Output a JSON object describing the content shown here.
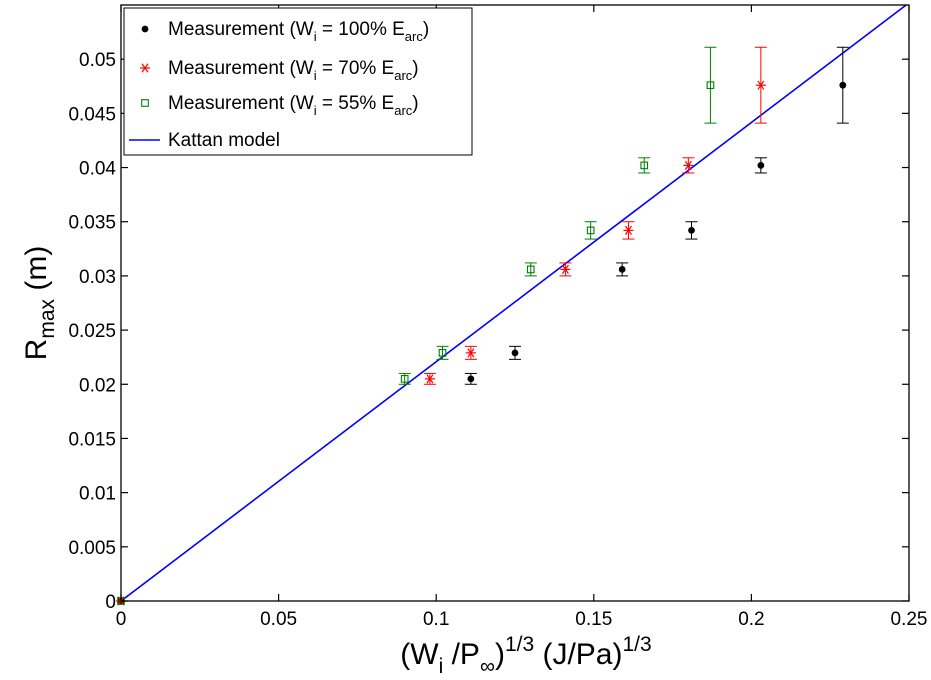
{
  "chart_data": {
    "type": "scatter",
    "title": "",
    "xlabel": {
      "base1": "(W",
      "sub1": "i",
      "mid": " /P",
      "sub2": "∞",
      "close": ")",
      "sup1": "1/3",
      "units": "  (J/Pa)",
      "sup2": "1/3"
    },
    "ylabel": {
      "base": "R",
      "sub": "max",
      "units": " (m)"
    },
    "xlim": [
      0,
      0.25
    ],
    "ylim": [
      0,
      0.055
    ],
    "xticks": [
      "0",
      "0.05",
      "0.1",
      "0.15",
      "0.2",
      "0.25"
    ],
    "xtick_values": [
      0,
      0.05,
      0.1,
      0.15,
      0.2,
      0.25
    ],
    "yticks": [
      "0",
      "0.005",
      "0.01",
      "0.015",
      "0.02",
      "0.025",
      "0.03",
      "0.035",
      "0.04",
      "0.045",
      "0.05"
    ],
    "ytick_values": [
      0,
      0.005,
      0.01,
      0.015,
      0.02,
      0.025,
      0.03,
      0.035,
      0.04,
      0.045,
      0.05
    ],
    "grid": false,
    "legend_position": "top-left",
    "series": [
      {
        "name": "Measurement (W_i = 100% E_arc)",
        "legend": {
          "pre": "Measurement (W",
          "sub": "i",
          "mid": " = 100% E",
          "sub2": "arc",
          "post": ")"
        },
        "marker": "dot",
        "color": "#000000",
        "x": [
          0,
          0.111,
          0.125,
          0.159,
          0.181,
          0.203,
          0.229
        ],
        "y": [
          0,
          0.0205,
          0.0229,
          0.0306,
          0.0342,
          0.0402,
          0.0476
        ],
        "err": [
          0,
          0.0005,
          0.0006,
          0.0006,
          0.0008,
          0.0007,
          0.0035
        ]
      },
      {
        "name": "Measurement (W_i = 70% E_arc)",
        "legend": {
          "pre": "Measurement (W",
          "sub": "i",
          "mid": " = 70% E",
          "sub2": "arc",
          "post": ")"
        },
        "marker": "asterisk",
        "color": "#ff0000",
        "x": [
          0,
          0.098,
          0.111,
          0.141,
          0.161,
          0.18,
          0.203
        ],
        "y": [
          0,
          0.0205,
          0.0229,
          0.0306,
          0.0342,
          0.0402,
          0.0476
        ],
        "err": [
          0,
          0.0005,
          0.0006,
          0.0006,
          0.0008,
          0.0007,
          0.0035
        ]
      },
      {
        "name": "Measurement (W_i = 55% E_arc)",
        "legend": {
          "pre": "Measurement (W",
          "sub": "i",
          "mid": " = 55% E",
          "sub2": "arc",
          "post": ")"
        },
        "marker": "square",
        "color": "#008000",
        "x": [
          0,
          0.09,
          0.102,
          0.13,
          0.149,
          0.166,
          0.187
        ],
        "y": [
          0,
          0.0205,
          0.0229,
          0.0306,
          0.0342,
          0.0402,
          0.0476
        ],
        "err": [
          0,
          0.0005,
          0.0006,
          0.0006,
          0.0008,
          0.0007,
          0.0035
        ]
      },
      {
        "name": "Kattan model",
        "legend": {
          "pre": "Kattan model"
        },
        "marker": "line",
        "color": "#0000ff",
        "x": [
          0,
          0.25
        ],
        "y": [
          0,
          0.0552
        ]
      }
    ]
  }
}
